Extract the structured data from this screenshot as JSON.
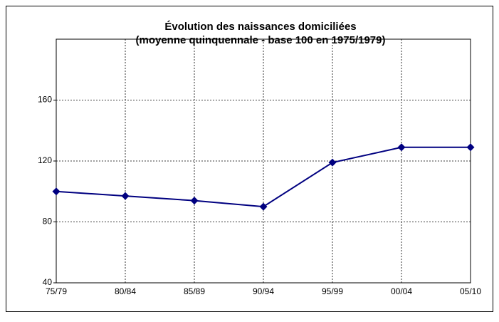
{
  "chart_data": {
    "type": "line",
    "title": [
      "Évolution des naissances domiciliées",
      "(moyenne quinquennale - base 100 en 1975/1979)"
    ],
    "categories": [
      "75/79",
      "80/84",
      "85/89",
      "90/94",
      "95/99",
      "00/04",
      "05/10"
    ],
    "series": [
      {
        "color": "#000080",
        "values": [
          100,
          97,
          94,
          90,
          119,
          129,
          129
        ]
      }
    ],
    "ylim": [
      40,
      200
    ],
    "yticks": [
      40,
      80,
      120,
      160
    ],
    "grid": true
  }
}
